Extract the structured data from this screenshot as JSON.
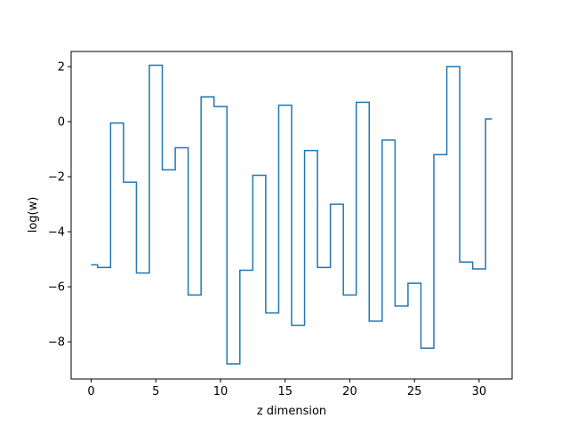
{
  "chart_data": {
    "type": "line",
    "drawstyle": "steps-mid",
    "xlabel": "z dimension",
    "ylabel": "log(w)",
    "xlim": [
      -1.55,
      32.55
    ],
    "ylim": [
      -9.35,
      2.55
    ],
    "xticks": [
      0,
      5,
      10,
      15,
      20,
      25,
      30
    ],
    "yticks": [
      -8,
      -6,
      -4,
      -2,
      0,
      2
    ],
    "grid": false,
    "color": "#1f77b4",
    "x": [
      0,
      1,
      2,
      3,
      4,
      5,
      6,
      7,
      8,
      9,
      10,
      11,
      12,
      13,
      14,
      15,
      16,
      17,
      18,
      19,
      20,
      21,
      22,
      23,
      24,
      25,
      26,
      27,
      28,
      29,
      30,
      31
    ],
    "values": [
      -5.2,
      -5.3,
      -0.05,
      -2.2,
      -5.5,
      2.05,
      -1.75,
      -0.95,
      -6.3,
      0.9,
      0.55,
      -8.8,
      -5.4,
      -1.95,
      -6.95,
      0.6,
      -7.4,
      -1.05,
      -5.3,
      -3.0,
      -6.3,
      0.7,
      -7.25,
      -0.67,
      -6.7,
      -5.87,
      -8.23,
      -1.2,
      2.0,
      -5.1,
      -5.35,
      0.1
    ]
  }
}
